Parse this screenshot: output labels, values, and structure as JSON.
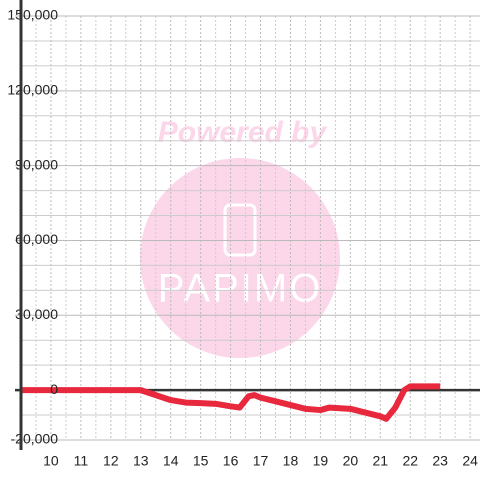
{
  "chart_data": {
    "type": "line",
    "watermark": {
      "line1": "Powered by",
      "line2": "PAPIMO"
    },
    "x": [
      9,
      13,
      14,
      14.5,
      15,
      15.5,
      16,
      16.3,
      16.6,
      16.8,
      17,
      17.5,
      18,
      18.5,
      19,
      19.3,
      20,
      20.5,
      21,
      21.2,
      21.5,
      21.8,
      22,
      23
    ],
    "series": [
      {
        "color": "#e8283c",
        "values": [
          0,
          0,
          -4000,
          -5000,
          -5200,
          -5500,
          -6500,
          -7000,
          -2500,
          -2000,
          -3000,
          -4500,
          -6000,
          -7500,
          -8000,
          -7000,
          -7500,
          -9000,
          -10500,
          -11500,
          -7000,
          0,
          1500,
          1500
        ]
      }
    ],
    "xlim": [
      9,
      24.33
    ],
    "xticks": [
      10,
      11,
      12,
      13,
      14,
      15,
      16,
      17,
      18,
      19,
      20,
      21,
      22,
      23,
      24
    ],
    "x_minor_ticks": [
      9.5,
      10.5,
      11.5,
      12.5,
      13.5,
      14.5,
      15.5,
      16.5,
      17.5,
      18.5,
      19.5,
      20.5,
      21.5,
      22.5,
      23.5
    ],
    "ylim": [
      -20000,
      150000
    ],
    "yticks": [
      {
        "value": -20000,
        "label": "-20,000"
      },
      0,
      {
        "value": 30000,
        "label": "30,000"
      },
      {
        "value": 60000,
        "label": "60,000"
      },
      {
        "value": 90000,
        "label": "90,000"
      },
      {
        "value": 120000,
        "label": "120,000"
      },
      {
        "value": 150000,
        "label": "150,000"
      }
    ],
    "y_minor_ticks": [
      -10000,
      10000,
      20000,
      40000,
      50000,
      70000,
      80000,
      100000,
      110000,
      130000,
      140000
    ],
    "grid": true
  }
}
